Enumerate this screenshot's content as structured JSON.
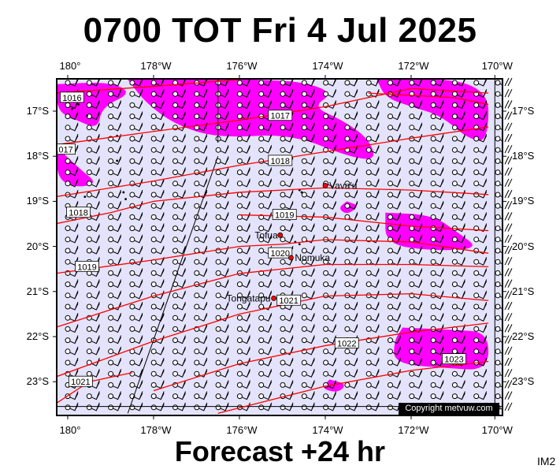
{
  "title": "0700 TOT Fri 4 Jul 2025",
  "footer": "Forecast +24 hr",
  "corner_label": "IM2",
  "copyright": "Copyright metvuw.com",
  "longitudes": [
    {
      "label": "180°",
      "lon": 180
    },
    {
      "label": "178°W",
      "lon": 178
    },
    {
      "label": "176°W",
      "lon": 176
    },
    {
      "label": "174°W",
      "lon": 174
    },
    {
      "label": "172°W",
      "lon": 172
    },
    {
      "label": "170°W",
      "lon": 170
    }
  ],
  "latitudes": [
    {
      "label": "17°S",
      "lat": 17
    },
    {
      "label": "18°S",
      "lat": 18
    },
    {
      "label": "19°S",
      "lat": 19
    },
    {
      "label": "20°S",
      "lat": 20
    },
    {
      "label": "21°S",
      "lat": 21
    },
    {
      "label": "22°S",
      "lat": 22
    },
    {
      "label": "23°S",
      "lat": 23
    }
  ],
  "places": [
    {
      "name": "Vava'u",
      "lon": 174.0,
      "lat": 18.65
    },
    {
      "name": "Tofua",
      "lon": 175.05,
      "lat": 19.75
    },
    {
      "name": "Nomuka",
      "lon": 174.8,
      "lat": 20.25
    },
    {
      "name": "Tongatapu",
      "lon": 175.2,
      "lat": 21.15
    }
  ],
  "isobars": [
    {
      "label": "1016",
      "label_at": {
        "lon": 179.9,
        "lat": 16.7
      },
      "points": [
        [
          180.3,
          16.6
        ],
        [
          178,
          16.45
        ],
        [
          176,
          16.3
        ]
      ]
    },
    {
      "label": "1017",
      "label_at": {
        "lon": 175.05,
        "lat": 17.1
      },
      "points": [
        [
          180.3,
          17.75
        ],
        [
          178,
          17.45
        ],
        [
          176,
          17.2
        ],
        [
          174,
          16.9
        ],
        [
          172,
          16.5
        ],
        [
          170.2,
          16.6
        ]
      ]
    },
    {
      "label": "1017",
      "label_at": {
        "lon": 180.1,
        "lat": 17.85
      },
      "points": [
        [
          173,
          16.6
        ],
        [
          171,
          16.7
        ],
        [
          170.2,
          16.85
        ]
      ]
    },
    {
      "label": "1018",
      "label_at": {
        "lon": 175.05,
        "lat": 18.1
      },
      "points": [
        [
          180.3,
          18.9
        ],
        [
          178,
          18.55
        ],
        [
          176,
          18.2
        ],
        [
          174,
          17.9
        ],
        [
          172,
          17.6
        ],
        [
          170.2,
          17.35
        ]
      ]
    },
    {
      "label": "1018",
      "label_at": {
        "lon": 179.75,
        "lat": 19.25
      },
      "points": [
        [
          180.3,
          19.5
        ],
        [
          179,
          19.25
        ],
        [
          178,
          19.0
        ],
        [
          176,
          18.8
        ],
        [
          174,
          18.7
        ],
        [
          172,
          18.75
        ],
        [
          170.2,
          18.85
        ]
      ]
    },
    {
      "label": "1019",
      "label_at": {
        "lon": 174.95,
        "lat": 19.3
      },
      "points": [
        [
          176,
          19.3
        ],
        [
          174,
          19.35
        ],
        [
          172,
          19.55
        ],
        [
          170.2,
          19.65
        ]
      ]
    },
    {
      "label": "1019",
      "label_at": {
        "lon": 179.55,
        "lat": 20.45
      },
      "points": [
        [
          180.3,
          20.6
        ],
        [
          178,
          20.3
        ],
        [
          176,
          20.0
        ],
        [
          175,
          19.95
        ],
        [
          174,
          19.85
        ],
        [
          172,
          19.9
        ],
        [
          170.2,
          20.15
        ]
      ]
    },
    {
      "label": "1020",
      "label_at": {
        "lon": 175.05,
        "lat": 20.15
      },
      "points": [
        [
          180.3,
          21.8
        ],
        [
          178,
          21.1
        ],
        [
          176,
          20.6
        ],
        [
          174,
          20.4
        ],
        [
          172,
          20.4
        ],
        [
          170.2,
          20.45
        ]
      ]
    },
    {
      "label": "1021",
      "label_at": {
        "lon": 174.85,
        "lat": 21.2
      },
      "points": [
        [
          180.3,
          22.9
        ],
        [
          178,
          22.1
        ],
        [
          176,
          21.5
        ],
        [
          174,
          21.1
        ],
        [
          172,
          21.05
        ],
        [
          170.2,
          21.2
        ]
      ]
    },
    {
      "label": "1022",
      "label_at": {
        "lon": 173.5,
        "lat": 22.15
      },
      "points": [
        [
          178,
          23.2
        ],
        [
          176,
          22.6
        ],
        [
          174,
          22.2
        ],
        [
          172,
          21.9
        ],
        [
          170.2,
          21.7
        ]
      ]
    },
    {
      "label": "1021",
      "label_at": {
        "lon": 179.7,
        "lat": 23.0
      },
      "points": [
        [
          180.3,
          23.5
        ],
        [
          179.5,
          23.0
        ],
        [
          178.5,
          22.8
        ]
      ]
    },
    {
      "label": "1023",
      "label_at": {
        "lon": 171.0,
        "lat": 22.5
      },
      "points": [
        [
          176.5,
          23.7
        ],
        [
          174,
          23.1
        ],
        [
          172,
          22.75
        ],
        [
          170.2,
          22.55
        ]
      ]
    }
  ],
  "rain_areas": [
    {
      "points": [
        [
          180.25,
          16.4
        ],
        [
          179,
          16.35
        ],
        [
          178.5,
          16.6
        ],
        [
          179.2,
          16.9
        ],
        [
          179.3,
          17.4
        ],
        [
          179.8,
          17.2
        ],
        [
          180.25,
          17.0
        ]
      ]
    },
    {
      "points": [
        [
          180.25,
          17.8
        ],
        [
          179.7,
          18.3
        ],
        [
          179.3,
          18.6
        ],
        [
          179.8,
          18.7
        ],
        [
          180.25,
          18.5
        ]
      ]
    },
    {
      "points": [
        [
          178.6,
          16.3
        ],
        [
          177.2,
          16.25
        ],
        [
          175.6,
          16.3
        ],
        [
          174.5,
          16.35
        ],
        [
          173.8,
          16.6
        ],
        [
          174.3,
          16.9
        ],
        [
          173.6,
          17.2
        ],
        [
          173,
          17.6
        ],
        [
          172.8,
          18.1
        ],
        [
          173.5,
          18.0
        ],
        [
          174.8,
          17.5
        ],
        [
          176.5,
          17.6
        ],
        [
          177.5,
          17.3
        ],
        [
          178.2,
          16.8
        ]
      ]
    },
    {
      "points": [
        [
          172.8,
          16.3
        ],
        [
          170.2,
          16.3
        ],
        [
          170.2,
          17.7
        ],
        [
          170.7,
          17.6
        ],
        [
          171.3,
          17.1
        ],
        [
          172,
          16.9
        ],
        [
          172.6,
          16.7
        ]
      ]
    },
    {
      "points": [
        [
          172.6,
          19.25
        ],
        [
          171.5,
          19.3
        ],
        [
          170.9,
          19.7
        ],
        [
          170.4,
          20.05
        ],
        [
          171.5,
          20.1
        ],
        [
          172.6,
          19.95
        ]
      ]
    },
    {
      "points": [
        [
          173.5,
          19.0
        ],
        [
          173.2,
          19.1
        ],
        [
          173.5,
          19.3
        ],
        [
          173.7,
          19.15
        ]
      ]
    },
    {
      "points": [
        [
          172.2,
          21.8
        ],
        [
          171.0,
          21.85
        ],
        [
          170.2,
          21.9
        ],
        [
          170.2,
          22.75
        ],
        [
          171.2,
          22.7
        ],
        [
          172.4,
          22.6
        ],
        [
          172.4,
          22.1
        ]
      ]
    },
    {
      "points": [
        [
          173.9,
          22.95
        ],
        [
          173.5,
          23.05
        ],
        [
          173.7,
          23.25
        ],
        [
          174.1,
          23.15
        ]
      ]
    }
  ],
  "coast": [
    {
      "lon": 179.9,
      "lat": 16.95
    },
    {
      "lon": 179.75,
      "lat": 16.85
    },
    {
      "lon": 179.55,
      "lat": 17.1
    },
    {
      "lon": 178.85,
      "lat": 17.55
    },
    {
      "lon": 178.85,
      "lat": 18.1
    },
    {
      "lon": 179.6,
      "lat": 18.9
    },
    {
      "lon": 178.7,
      "lat": 18.8
    },
    {
      "lon": 178.65,
      "lat": 18.95
    },
    {
      "lon": 174.6,
      "lat": 18.75
    },
    {
      "lon": 174.55,
      "lat": 18.8
    },
    {
      "lon": 174.7,
      "lat": 19.9
    },
    {
      "lon": 174.6,
      "lat": 19.95
    }
  ],
  "map_extent": {
    "lon_west": 180.25,
    "lon_east": 169.8,
    "lat_north": 16.3,
    "lat_south": 23.7
  }
}
